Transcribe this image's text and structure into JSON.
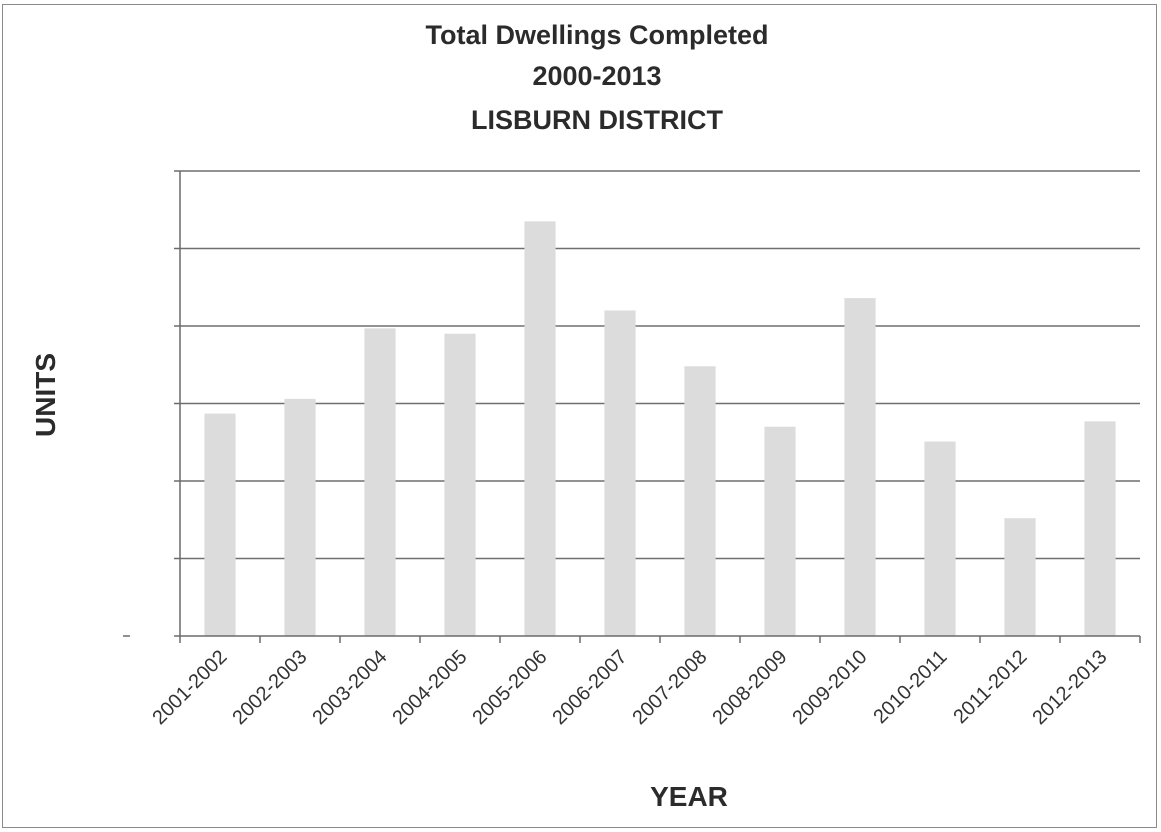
{
  "chart_data": {
    "type": "bar",
    "title": [
      "Total Dwellings Completed",
      "2000-2013",
      "LISBURN DISTRICT"
    ],
    "xlabel": "YEAR",
    "ylabel": "UNITS",
    "categories": [
      "2001-2002",
      "2002-2003",
      "2003-2004",
      "2004-2005",
      "2005-2006",
      "2006-2007",
      "2007-2008",
      "2008-2009",
      "2009-2010",
      "2010-2011",
      "2011-2012",
      "2012-2013"
    ],
    "values": [
      2.87,
      3.06,
      3.97,
      3.9,
      5.35,
      4.2,
      3.48,
      2.7,
      4.36,
      2.51,
      1.52,
      2.77
    ],
    "ylim": [
      0,
      6
    ],
    "ytick_labels_shown": false,
    "grid": true,
    "bar_color": "#dcdcdc"
  }
}
